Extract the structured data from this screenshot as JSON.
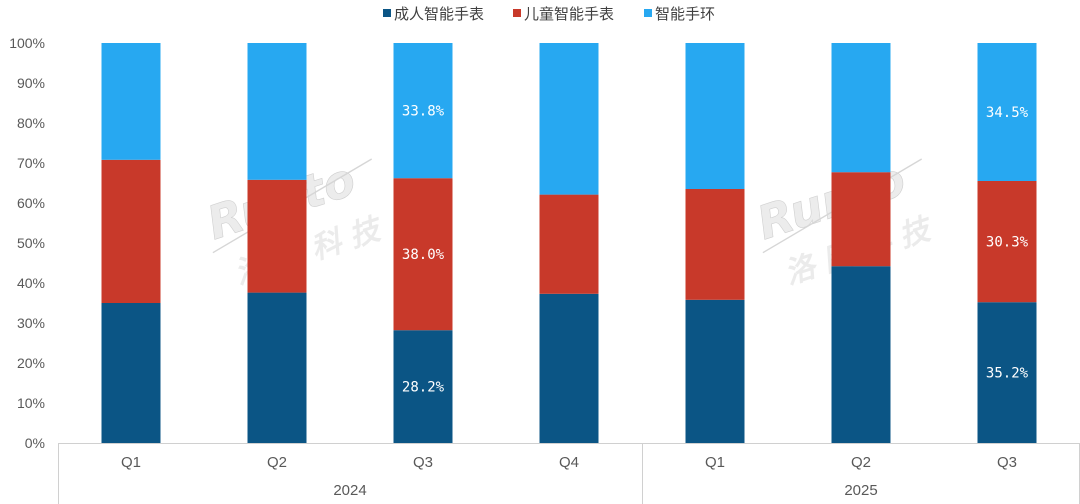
{
  "chart_data": {
    "type": "bar",
    "stacked": true,
    "percent": true,
    "groups": [
      {
        "label": "2024",
        "categories": [
          "Q1",
          "Q2",
          "Q3",
          "Q4"
        ]
      },
      {
        "label": "2025",
        "categories": [
          "Q1",
          "Q2",
          "Q3"
        ]
      }
    ],
    "categories": [
      "Q1",
      "Q2",
      "Q3",
      "Q4",
      "Q1",
      "Q2",
      "Q3"
    ],
    "series": [
      {
        "name": "成人智能手表",
        "color": "#0b5585",
        "values": [
          35.0,
          37.6,
          28.2,
          37.3,
          35.8,
          44.2,
          35.2
        ]
      },
      {
        "name": "儿童智能手表",
        "color": "#c8392a",
        "values": [
          35.8,
          28.2,
          38.0,
          24.8,
          27.7,
          23.5,
          30.3
        ]
      },
      {
        "name": "智能手环",
        "color": "#27a8f1",
        "values": [
          29.2,
          34.2,
          33.8,
          37.9,
          36.5,
          32.3,
          34.5
        ]
      }
    ],
    "data_labels": [
      {
        "series": 0,
        "index": 2,
        "text": "28.2%"
      },
      {
        "series": 1,
        "index": 2,
        "text": "38.0%"
      },
      {
        "series": 2,
        "index": 2,
        "text": "33.8%"
      },
      {
        "series": 0,
        "index": 6,
        "text": "35.2%"
      },
      {
        "series": 1,
        "index": 6,
        "text": "30.3%"
      },
      {
        "series": 2,
        "index": 6,
        "text": "34.5%"
      }
    ],
    "y_ticks": [
      "0%",
      "10%",
      "20%",
      "30%",
      "40%",
      "50%",
      "60%",
      "70%",
      "80%",
      "90%",
      "100%"
    ],
    "ylim": [
      0,
      100
    ],
    "legend_position": "top-center",
    "grid": false,
    "title": "",
    "xlabel": "",
    "ylabel": ""
  },
  "watermark": {
    "latin": "Runto",
    "chinese": "洛图科技"
  }
}
